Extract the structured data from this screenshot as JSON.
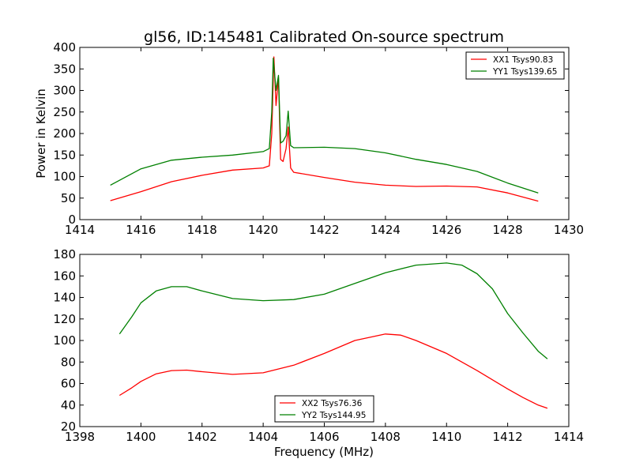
{
  "chart_data": [
    {
      "type": "line",
      "title": "gl56, ID:145481 Calibrated On-source spectrum",
      "xlabel": "",
      "ylabel": "Power in Kelvin",
      "xlim": [
        1414,
        1430
      ],
      "ylim": [
        0,
        400
      ],
      "xticks": [
        1414,
        1416,
        1418,
        1420,
        1422,
        1424,
        1426,
        1428,
        1430
      ],
      "yticks": [
        0,
        50,
        100,
        150,
        200,
        250,
        300,
        350,
        400
      ],
      "legend_position": "top-right",
      "series": [
        {
          "name": "XX1 Tsys90.83",
          "color": "#ff0000",
          "x": [
            1415,
            1416,
            1417,
            1418,
            1419,
            1420,
            1420.2,
            1420.28,
            1420.35,
            1420.42,
            1420.5,
            1420.57,
            1420.65,
            1420.75,
            1420.82,
            1420.9,
            1421,
            1422,
            1423,
            1424,
            1425,
            1426,
            1427,
            1428,
            1429
          ],
          "y": [
            44,
            65,
            88,
            103,
            115,
            120,
            125,
            200,
            378,
            265,
            330,
            140,
            135,
            165,
            215,
            120,
            110,
            98,
            87,
            80,
            77,
            78,
            76,
            62,
            43
          ]
        },
        {
          "name": "YY1 Tsys139.65",
          "color": "#008000",
          "x": [
            1415,
            1416,
            1417,
            1418,
            1419,
            1420,
            1420.2,
            1420.28,
            1420.33,
            1420.42,
            1420.5,
            1420.57,
            1420.65,
            1420.75,
            1420.82,
            1420.9,
            1421,
            1422,
            1423,
            1424,
            1425,
            1426,
            1427,
            1428,
            1429
          ],
          "y": [
            80,
            118,
            138,
            145,
            150,
            158,
            165,
            250,
            375,
            300,
            335,
            178,
            182,
            195,
            252,
            172,
            167,
            168,
            165,
            155,
            140,
            128,
            112,
            85,
            62
          ]
        }
      ]
    },
    {
      "type": "line",
      "title": "",
      "xlabel": "Frequency (MHz)",
      "ylabel": "",
      "xlim": [
        1398,
        1414
      ],
      "ylim": [
        20,
        180
      ],
      "xticks": [
        1398,
        1400,
        1402,
        1404,
        1406,
        1408,
        1410,
        1412,
        1414
      ],
      "yticks": [
        20,
        40,
        60,
        80,
        100,
        120,
        140,
        160,
        180
      ],
      "legend_position": "lower-center",
      "series": [
        {
          "name": "XX2 Tsys76.36",
          "color": "#ff0000",
          "x": [
            1399.3,
            1399.7,
            1400,
            1400.5,
            1401,
            1401.5,
            1402,
            1403,
            1404,
            1405,
            1406,
            1407,
            1408,
            1408.5,
            1409,
            1410,
            1411,
            1412,
            1412.5,
            1413,
            1413.3
          ],
          "y": [
            49,
            56,
            62,
            69,
            72,
            72.5,
            71,
            68.5,
            70,
            77,
            88,
            100,
            106,
            105,
            100,
            88,
            72,
            55,
            47,
            40,
            37
          ]
        },
        {
          "name": "YY2 Tsys144.95",
          "color": "#008000",
          "x": [
            1399.3,
            1399.7,
            1400,
            1400.5,
            1401,
            1401.5,
            1402,
            1403,
            1404,
            1405,
            1406,
            1407,
            1408,
            1409,
            1410,
            1410.5,
            1411,
            1411.5,
            1412,
            1412.5,
            1413,
            1413.3
          ],
          "y": [
            106,
            122,
            135,
            146,
            150,
            150,
            146,
            139,
            137,
            138,
            143,
            153,
            163,
            170,
            172,
            170,
            162,
            148,
            125,
            107,
            90,
            83
          ]
        }
      ]
    }
  ]
}
